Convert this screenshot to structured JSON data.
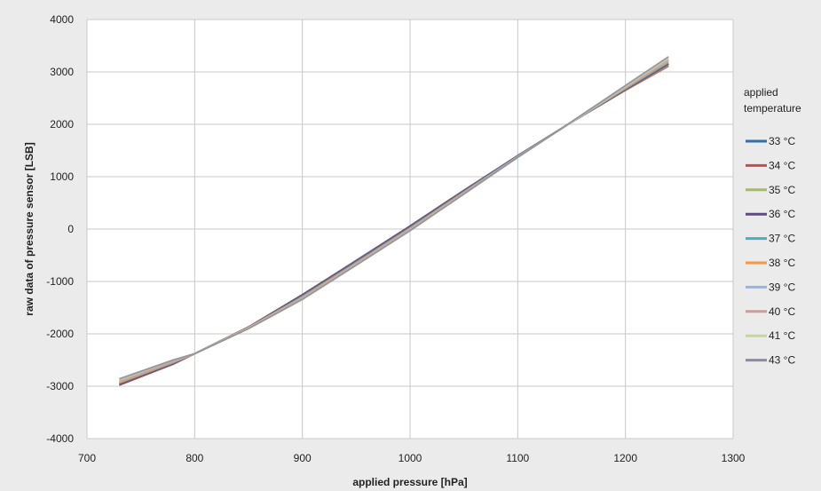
{
  "chart_data": {
    "type": "line",
    "xlabel": "applied pressure [hPa]",
    "ylabel": "raw data of pressure sensor [LSB]",
    "xlim": [
      700,
      1300
    ],
    "ylim": [
      -4000,
      4000
    ],
    "x_ticks": [
      700,
      800,
      900,
      1000,
      1100,
      1200,
      1300
    ],
    "y_ticks": [
      -4000,
      -3000,
      -2000,
      -1000,
      0,
      1000,
      2000,
      3000,
      4000
    ],
    "grid": true,
    "legend_title": "applied temperature",
    "legend_position": "right",
    "x": [
      730,
      780,
      800,
      850,
      900,
      950,
      1000,
      1050,
      1100,
      1150,
      1200,
      1240
    ],
    "series": [
      {
        "name": "33 °C",
        "color": "#2f6fb3",
        "values": [
          -2960,
          -2560,
          -2380,
          -1880,
          -1290,
          -640,
          30,
          720,
          1390,
          2040,
          2670,
          3160
        ]
      },
      {
        "name": "34 °C",
        "color": "#c0504d",
        "values": [
          -2980,
          -2580,
          -2380,
          -1870,
          -1260,
          -620,
          50,
          730,
          1400,
          2040,
          2650,
          3110
        ]
      },
      {
        "name": "35 °C",
        "color": "#a2b86b",
        "values": [
          -2950,
          -2560,
          -2380,
          -1880,
          -1280,
          -630,
          40,
          720,
          1390,
          2040,
          2660,
          3140
        ]
      },
      {
        "name": "36 °C",
        "color": "#5c4d7d",
        "values": [
          -2970,
          -2570,
          -2380,
          -1870,
          -1250,
          -600,
          60,
          740,
          1400,
          2040,
          2660,
          3150
        ]
      },
      {
        "name": "37 °C",
        "color": "#4bacc6",
        "values": [
          -2940,
          -2550,
          -2380,
          -1880,
          -1290,
          -640,
          20,
          710,
          1390,
          2040,
          2680,
          3180
        ]
      },
      {
        "name": "38 °C",
        "color": "#f79646",
        "values": [
          -2930,
          -2540,
          -2380,
          -1880,
          -1300,
          -650,
          10,
          700,
          1380,
          2040,
          2690,
          3200
        ]
      },
      {
        "name": "39 °C",
        "color": "#9fb3d6",
        "values": [
          -2910,
          -2530,
          -2380,
          -1890,
          -1310,
          -660,
          0,
          690,
          1380,
          2040,
          2700,
          3220
        ]
      },
      {
        "name": "40 °C",
        "color": "#d99694",
        "values": [
          -2900,
          -2520,
          -2380,
          -1890,
          -1320,
          -670,
          -10,
          690,
          1380,
          2040,
          2710,
          3240
        ]
      },
      {
        "name": "41 °C",
        "color": "#c3d69b",
        "values": [
          -2880,
          -2510,
          -2380,
          -1890,
          -1330,
          -680,
          -20,
          680,
          1370,
          2040,
          2720,
          3260
        ]
      },
      {
        "name": "43 °C",
        "color": "#8c8c9e",
        "values": [
          -2860,
          -2500,
          -2380,
          -1900,
          -1340,
          -690,
          -30,
          670,
          1370,
          2050,
          2740,
          3290
        ]
      }
    ]
  }
}
